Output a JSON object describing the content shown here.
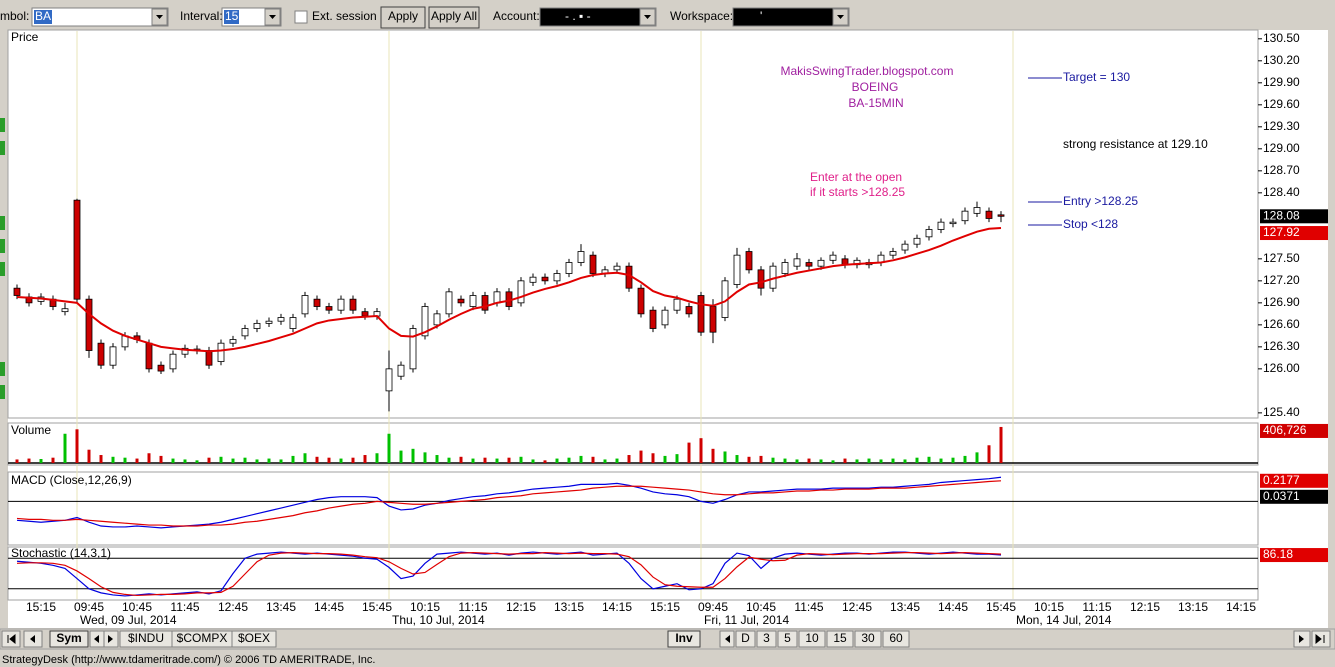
{
  "toolbar": {
    "symbol_label": "mbol:",
    "symbol": "BA",
    "interval_label": "Interval:",
    "interval": "15",
    "ext_session": "Ext. session",
    "apply": "Apply",
    "apply_all": "Apply All",
    "account_label": "Account:",
    "account": "-  .  ▪  -",
    "workspace_label": "Workspace:",
    "workspace": "'"
  },
  "chart_data": [
    {
      "type": "candlestick",
      "title": "Price",
      "open": [
        127.1,
        126.98,
        126.92,
        126.95,
        126.78,
        128.3,
        126.95,
        126.35,
        126.05,
        126.3,
        126.45,
        126.35,
        126.05,
        126.0,
        126.2,
        126.25,
        126.25,
        126.1,
        126.35,
        126.45,
        126.55,
        126.62,
        126.65,
        126.55,
        126.75,
        126.95,
        126.85,
        126.8,
        126.95,
        126.78,
        126.72,
        125.7,
        125.9,
        126.0,
        126.45,
        126.6,
        126.75,
        126.95,
        126.85,
        127.0,
        126.9,
        127.05,
        126.9,
        127.18,
        127.25,
        127.2,
        127.3,
        127.45,
        127.55,
        127.3,
        127.35,
        127.4,
        127.1,
        126.8,
        126.6,
        126.8,
        126.85,
        127.0,
        126.85,
        126.7,
        127.15,
        127.6,
        127.35,
        127.1,
        127.3,
        127.4,
        127.45,
        127.4,
        127.48,
        127.5,
        127.42,
        127.42,
        127.45,
        127.55,
        127.62,
        127.7,
        127.8,
        127.9,
        127.98,
        128.02,
        128.12,
        128.15,
        128.1
      ],
      "high": [
        127.15,
        127.03,
        127.03,
        127.0,
        126.9,
        128.32,
        127.0,
        126.4,
        126.35,
        126.5,
        126.5,
        126.4,
        126.1,
        126.25,
        126.33,
        126.32,
        126.3,
        126.4,
        126.45,
        126.6,
        126.67,
        126.7,
        126.75,
        126.75,
        127.05,
        127.0,
        126.9,
        127.0,
        127.0,
        126.83,
        126.83,
        126.25,
        126.1,
        126.6,
        126.9,
        126.8,
        127.1,
        127.0,
        127.05,
        127.05,
        127.1,
        127.1,
        127.25,
        127.3,
        127.3,
        127.35,
        127.5,
        127.7,
        127.6,
        127.4,
        127.45,
        127.45,
        127.15,
        126.85,
        126.85,
        127.0,
        126.9,
        127.05,
        126.95,
        127.25,
        127.65,
        127.65,
        127.4,
        127.45,
        127.5,
        127.58,
        127.5,
        127.52,
        127.6,
        127.55,
        127.52,
        127.5,
        127.6,
        127.65,
        127.75,
        127.83,
        127.95,
        128.05,
        128.05,
        128.2,
        128.28,
        128.2,
        128.15
      ],
      "low": [
        126.95,
        126.85,
        126.87,
        126.8,
        126.73,
        126.9,
        126.15,
        126.0,
        126.0,
        126.25,
        126.35,
        125.95,
        125.93,
        125.95,
        126.15,
        126.2,
        126.0,
        126.05,
        126.3,
        126.4,
        126.5,
        126.57,
        126.6,
        126.5,
        126.7,
        126.8,
        126.75,
        126.75,
        126.75,
        126.67,
        126.67,
        125.42,
        125.85,
        125.95,
        126.4,
        126.55,
        126.7,
        126.85,
        126.8,
        126.75,
        126.85,
        126.8,
        126.85,
        127.13,
        127.15,
        127.15,
        127.25,
        127.4,
        127.25,
        127.25,
        127.3,
        127.05,
        126.7,
        126.5,
        126.55,
        126.75,
        126.7,
        126.45,
        126.35,
        126.65,
        127.1,
        127.3,
        127.0,
        127.05,
        127.25,
        127.35,
        127.35,
        127.35,
        127.43,
        127.37,
        127.37,
        127.37,
        127.4,
        127.5,
        127.57,
        127.65,
        127.75,
        127.85,
        127.93,
        127.97,
        128.07,
        128.0,
        128.0
      ],
      "close": [
        127.0,
        126.9,
        126.98,
        126.85,
        126.82,
        126.95,
        126.25,
        126.05,
        126.3,
        126.45,
        126.4,
        126.0,
        125.97,
        126.2,
        126.28,
        126.27,
        126.05,
        126.35,
        126.4,
        126.55,
        126.62,
        126.65,
        126.7,
        126.7,
        127.0,
        126.85,
        126.8,
        126.95,
        126.8,
        126.72,
        126.78,
        126.0,
        126.05,
        126.55,
        126.85,
        126.75,
        127.05,
        126.9,
        127.0,
        126.8,
        127.05,
        126.85,
        127.2,
        127.25,
        127.2,
        127.3,
        127.45,
        127.6,
        127.3,
        127.35,
        127.4,
        127.1,
        126.75,
        126.55,
        126.8,
        126.95,
        126.75,
        126.5,
        126.5,
        127.2,
        127.55,
        127.35,
        127.1,
        127.4,
        127.45,
        127.5,
        127.4,
        127.48,
        127.55,
        127.42,
        127.48,
        127.45,
        127.55,
        127.6,
        127.7,
        127.78,
        127.9,
        128.0,
        128.0,
        128.15,
        128.2,
        128.05,
        128.08
      ],
      "up_color": "#ffffff",
      "down_color": "#cc0000",
      "moving_average": {
        "color": "#e00000",
        "values": [
          126.98,
          126.97,
          126.96,
          126.94,
          126.92,
          126.9,
          126.75,
          126.62,
          126.52,
          126.45,
          126.4,
          126.35,
          126.3,
          126.28,
          126.26,
          126.25,
          126.24,
          126.25,
          126.27,
          126.3,
          126.34,
          126.38,
          126.43,
          126.48,
          126.55,
          126.62,
          126.66,
          126.68,
          126.7,
          126.71,
          126.72,
          126.55,
          126.45,
          126.44,
          126.5,
          126.58,
          126.67,
          126.75,
          126.82,
          126.85,
          126.9,
          126.93,
          126.98,
          127.04,
          127.09,
          127.13,
          127.18,
          127.24,
          127.28,
          127.3,
          127.31,
          127.28,
          127.18,
          127.06,
          127.0,
          126.97,
          126.92,
          126.88,
          126.86,
          126.92,
          127.05,
          127.15,
          127.18,
          127.23,
          127.27,
          127.31,
          127.34,
          127.37,
          127.4,
          127.42,
          127.43,
          127.44,
          127.45,
          127.48,
          127.52,
          127.57,
          127.62,
          127.68,
          127.75,
          127.81,
          127.87,
          127.91,
          127.92
        ]
      },
      "ylim": [
        125.33,
        130.62
      ],
      "yticks": [
        {
          "value": 130.5,
          "label": "130.50"
        },
        {
          "value": 130.2,
          "label": "130.20"
        },
        {
          "value": 129.9,
          "label": "129.90"
        },
        {
          "value": 129.6,
          "label": "129.60"
        },
        {
          "value": 129.3,
          "label": "129.30"
        },
        {
          "value": 129.0,
          "label": "129.00"
        },
        {
          "value": 128.7,
          "label": "128.70"
        },
        {
          "value": 128.4,
          "label": "128.40"
        },
        {
          "value": 127.5,
          "label": "127.50"
        },
        {
          "value": 127.2,
          "label": "127.20"
        },
        {
          "value": 126.9,
          "label": "126.90"
        },
        {
          "value": 126.6,
          "label": "126.60"
        },
        {
          "value": 126.3,
          "label": "126.30"
        },
        {
          "value": 126.0,
          "label": "126.00"
        },
        {
          "value": 125.4,
          "label": "125.40"
        }
      ],
      "annotations": [
        "MakisSwingTrader.blogspot.com",
        "BOEING",
        "BA-15MIN",
        "Enter at the open",
        "if it starts >128.25",
        "Target = 130",
        "strong resistance at 129.10",
        "Entry >128.25",
        "Stop <128"
      ],
      "time_labels": [
        "15:15",
        "09:45",
        "10:45",
        "11:45",
        "12:45",
        "13:45",
        "14:45",
        "15:45",
        "10:15",
        "11:15",
        "12:15",
        "13:15",
        "14:15",
        "15:15",
        "09:45",
        "10:45",
        "11:45",
        "12:45",
        "13:45",
        "14:45",
        "15:45",
        "10:15",
        "11:15",
        "12:15",
        "13:15",
        "14:15"
      ],
      "day_labels": [
        "Wed, 09 Jul, 2014",
        "Thu, 10 Jul, 2014",
        "Fri, 11 Jul, 2014",
        "Mon, 14 Jul, 2014"
      ]
    },
    {
      "type": "bar",
      "title": "Volume",
      "up_color": "#00c000",
      "down_color": "#d00000",
      "ylim": [
        0,
        440000
      ],
      "values": [
        40000,
        50000,
        45000,
        60000,
        330000,
        380000,
        150000,
        90000,
        70000,
        60000,
        50000,
        110000,
        80000,
        50000,
        40000,
        30000,
        60000,
        70000,
        50000,
        60000,
        40000,
        50000,
        40000,
        80000,
        110000,
        70000,
        60000,
        50000,
        60000,
        90000,
        110000,
        330000,
        140000,
        160000,
        120000,
        90000,
        60000,
        70000,
        50000,
        60000,
        50000,
        60000,
        70000,
        40000,
        30000,
        50000,
        60000,
        80000,
        70000,
        40000,
        50000,
        90000,
        140000,
        110000,
        80000,
        100000,
        230000,
        280000,
        160000,
        130000,
        90000,
        70000,
        80000,
        60000,
        50000,
        40000,
        50000,
        40000,
        30000,
        50000,
        40000,
        50000,
        40000,
        50000,
        40000,
        60000,
        70000,
        50000,
        60000,
        80000,
        120000,
        200000,
        406726
      ],
      "last_value_label": "406,726"
    },
    {
      "type": "line",
      "title": "MACD (Close,12,26,9)",
      "ylim": [
        -0.45,
        0.3
      ],
      "histogram_last": 0.0371,
      "series": [
        {
          "color": "#0000e0",
          "values": [
            -0.2,
            -0.21,
            -0.22,
            -0.21,
            -0.2,
            -0.17,
            -0.22,
            -0.26,
            -0.27,
            -0.27,
            -0.26,
            -0.27,
            -0.28,
            -0.27,
            -0.26,
            -0.25,
            -0.24,
            -0.22,
            -0.19,
            -0.16,
            -0.13,
            -0.1,
            -0.07,
            -0.04,
            -0.01,
            0.02,
            0.04,
            0.05,
            0.05,
            0.05,
            0.04,
            -0.05,
            -0.09,
            -0.08,
            -0.04,
            -0.02,
            0.01,
            0.03,
            0.05,
            0.06,
            0.08,
            0.09,
            0.11,
            0.13,
            0.14,
            0.15,
            0.16,
            0.18,
            0.18,
            0.18,
            0.19,
            0.17,
            0.14,
            0.1,
            0.08,
            0.07,
            0.05,
            0.0,
            -0.02,
            0.02,
            0.07,
            0.1,
            0.1,
            0.11,
            0.12,
            0.13,
            0.13,
            0.13,
            0.14,
            0.14,
            0.14,
            0.14,
            0.15,
            0.15,
            0.16,
            0.17,
            0.18,
            0.2,
            0.21,
            0.22,
            0.23,
            0.24,
            0.2548
          ]
        },
        {
          "color": "#e00000",
          "values": [
            -0.18,
            -0.19,
            -0.19,
            -0.2,
            -0.2,
            -0.19,
            -0.2,
            -0.21,
            -0.22,
            -0.23,
            -0.24,
            -0.25,
            -0.25,
            -0.26,
            -0.26,
            -0.26,
            -0.25,
            -0.25,
            -0.24,
            -0.22,
            -0.21,
            -0.19,
            -0.17,
            -0.15,
            -0.12,
            -0.1,
            -0.07,
            -0.05,
            -0.03,
            -0.02,
            0.0,
            -0.01,
            -0.02,
            -0.03,
            -0.03,
            -0.02,
            -0.01,
            0.0,
            0.01,
            0.02,
            0.04,
            0.05,
            0.06,
            0.08,
            0.09,
            0.1,
            0.11,
            0.12,
            0.14,
            0.15,
            0.16,
            0.16,
            0.16,
            0.15,
            0.14,
            0.13,
            0.12,
            0.1,
            0.08,
            0.07,
            0.07,
            0.08,
            0.09,
            0.09,
            0.1,
            0.11,
            0.11,
            0.12,
            0.12,
            0.13,
            0.13,
            0.13,
            0.14,
            0.14,
            0.14,
            0.15,
            0.16,
            0.17,
            0.18,
            0.19,
            0.2,
            0.21,
            0.2177
          ]
        }
      ]
    },
    {
      "type": "line",
      "title": "Stochastic (14,3,1)",
      "ylim": [
        0,
        100
      ],
      "levels": [
        80,
        20
      ],
      "series": [
        {
          "color": "#0000e0",
          "values": [
            74,
            72,
            70,
            66,
            60,
            40,
            20,
            12,
            8,
            6,
            8,
            10,
            8,
            10,
            12,
            14,
            10,
            16,
            50,
            80,
            88,
            90,
            92,
            90,
            88,
            90,
            88,
            86,
            84,
            80,
            78,
            62,
            40,
            45,
            70,
            88,
            90,
            92,
            90,
            88,
            90,
            86,
            90,
            92,
            90,
            88,
            90,
            92,
            86,
            88,
            90,
            70,
            40,
            20,
            25,
            30,
            18,
            20,
            30,
            70,
            90,
            85,
            60,
            80,
            88,
            90,
            88,
            86,
            88,
            90,
            90,
            88,
            90,
            92,
            92,
            90,
            88,
            90,
            92,
            90,
            88,
            88,
            86.18
          ]
        },
        {
          "color": "#e00000",
          "values": [
            70,
            71,
            71,
            70,
            66,
            55,
            40,
            24,
            13,
            9,
            7,
            8,
            9,
            9,
            10,
            12,
            12,
            13,
            25,
            49,
            73,
            86,
            90,
            91,
            90,
            89,
            89,
            88,
            86,
            83,
            81,
            73,
            60,
            49,
            52,
            68,
            83,
            90,
            91,
            90,
            89,
            88,
            89,
            89,
            91,
            90,
            89,
            90,
            89,
            89,
            88,
            83,
            67,
            43,
            28,
            25,
            24,
            23,
            23,
            40,
            63,
            82,
            78,
            75,
            76,
            86,
            89,
            88,
            87,
            88,
            89,
            89,
            89,
            90,
            91,
            91,
            90,
            89,
            90,
            91,
            90,
            89,
            88
          ]
        }
      ]
    }
  ],
  "tabs": {
    "sym": "Sym",
    "symbols": [
      "$INDU",
      "$COMPX",
      "$OEX"
    ],
    "inv": "Inv",
    "periods": [
      "D",
      "3",
      "5",
      "10",
      "15",
      "30",
      "60"
    ]
  },
  "status_bar": "StrategyDesk (http://www.tdameritrade.com/) © 2006 TD AMERITRADE, Inc."
}
